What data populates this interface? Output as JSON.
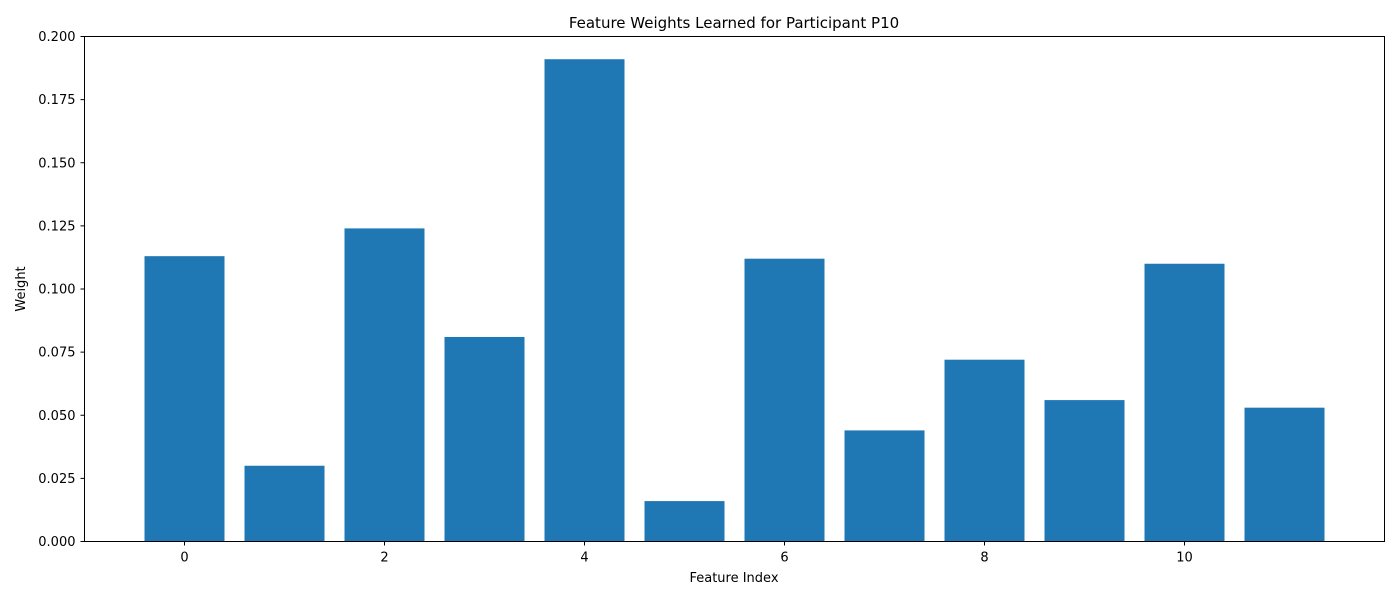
{
  "chart_data": {
    "type": "bar",
    "title": "Feature Weights Learned for Participant P10",
    "xlabel": "Feature Index",
    "ylabel": "Weight",
    "categories": [
      0,
      1,
      2,
      3,
      4,
      5,
      6,
      7,
      8,
      9,
      10,
      11
    ],
    "values": [
      0.113,
      0.03,
      0.124,
      0.081,
      0.191,
      0.016,
      0.112,
      0.044,
      0.072,
      0.056,
      0.11,
      0.053
    ],
    "xlim": [
      -1,
      12
    ],
    "ylim": [
      0,
      0.2
    ],
    "x_ticks": [
      0,
      2,
      4,
      6,
      8,
      10
    ],
    "x_tick_labels": [
      "0",
      "2",
      "4",
      "6",
      "8",
      "10"
    ],
    "y_ticks": [
      0,
      0.025,
      0.05,
      0.075,
      0.1,
      0.125,
      0.15,
      0.175,
      0.2
    ],
    "y_tick_labels": [
      "0.000",
      "0.025",
      "0.050",
      "0.075",
      "0.100",
      "0.125",
      "0.150",
      "0.175",
      "0.200"
    ],
    "grid": false,
    "legend": "none",
    "colors": {
      "bar": "#1f77b4",
      "axis": "#000000"
    }
  }
}
